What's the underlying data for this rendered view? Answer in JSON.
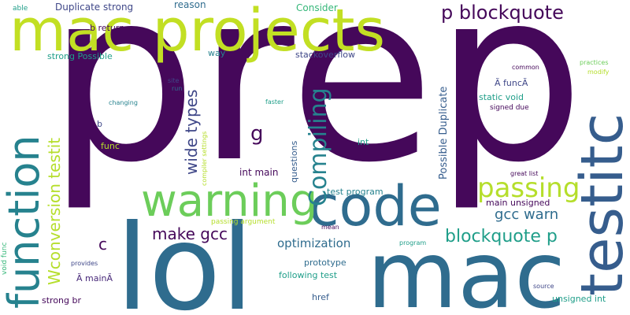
{
  "palette": {
    "dark_purple": "#45085a",
    "purple": "#482979",
    "indigo": "#3f4788",
    "slate_blue": "#365d8d",
    "blue_teal": "#2f6c8e",
    "teal": "#26828e",
    "green_teal": "#1f9e89",
    "green": "#35b779",
    "light_green": "#6ccd5a",
    "lime": "#b5de2b",
    "yellow_green": "#c2df23"
  },
  "words": {
    "prep": "prep",
    "lol": "lol",
    "mac": "mac",
    "mac_projects": "mac projects",
    "testitc": "testitc",
    "code": "code",
    "function": "function",
    "warning": "warning",
    "passing": "passing",
    "compiling": "Compiling",
    "p_blockquote": "p blockquote",
    "wide_types": "wide types",
    "make_gcc": "make gcc",
    "blockquote_p": "blockquote p",
    "gcc_warn": "gcc warn",
    "wconversion_testit": "Wconversion testit",
    "g": "g",
    "optimization": "optimization",
    "c": "c",
    "possible_duplicate": "Possible Duplicate",
    "int_main": "int main",
    "questions": "questions",
    "duplicate_strong": "Duplicate strong",
    "reason": "reason",
    "consider": "Consider",
    "able": "able",
    "b_return": "b return",
    "strong_possible": "strong Possible",
    "way": "way",
    "stackoverflow": "stackoverflow",
    "site": "site",
    "run": "run",
    "changing": "changing",
    "faster": "faster",
    "b": "b",
    "func": "func",
    "compiler_settings": "compiler settings",
    "int": "int",
    "static_void": "static void",
    "signed_due": "signed due",
    "a_func": "Ã funcÃ",
    "common": "common",
    "practices": "practices",
    "modify": "modify",
    "great_list": "great list",
    "test_program": "test program",
    "main_unsigned": "main unsigned",
    "passing_argument": "passing argument",
    "mean": "mean",
    "program": "program",
    "prototype": "prototype",
    "following_test": "following test",
    "void_func": "void func",
    "provides": "provides",
    "a_main": "Ã mainÃ",
    "strong_br": "strong br",
    "href": "href",
    "source": "source",
    "unsigned_int": "unsigned int"
  }
}
